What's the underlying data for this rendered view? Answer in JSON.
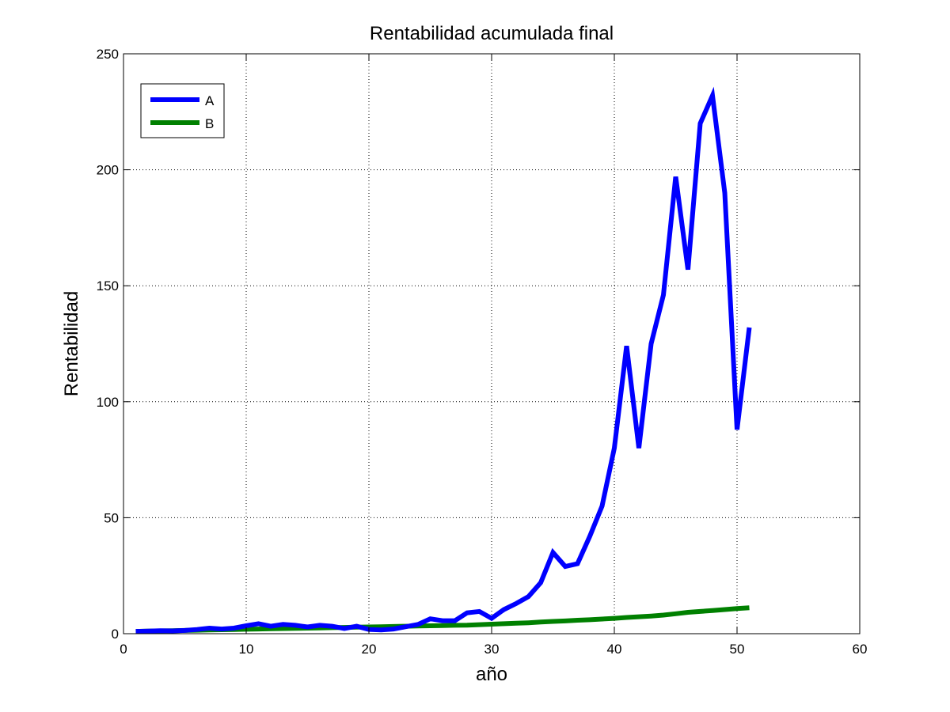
{
  "chart_data": {
    "type": "line",
    "title": "Rentabilidad acumulada final",
    "xlabel": "año",
    "ylabel": "Rentabilidad",
    "xlim": [
      0,
      60
    ],
    "ylim": [
      0,
      250
    ],
    "xticks": [
      0,
      10,
      20,
      30,
      40,
      50,
      60
    ],
    "yticks": [
      0,
      50,
      100,
      150,
      200,
      250
    ],
    "xtick_labels": [
      "0",
      "10",
      "20",
      "30",
      "40",
      "50",
      "60"
    ],
    "ytick_labels": [
      "0",
      "50",
      "100",
      "150",
      "200",
      "250"
    ],
    "grid": true,
    "legend_position": "top-left",
    "x": [
      1,
      2,
      3,
      4,
      5,
      6,
      7,
      8,
      9,
      10,
      11,
      12,
      13,
      14,
      15,
      16,
      17,
      18,
      19,
      20,
      21,
      22,
      23,
      24,
      25,
      26,
      27,
      28,
      29,
      30,
      31,
      32,
      33,
      34,
      35,
      36,
      37,
      38,
      39,
      40,
      41,
      42,
      43,
      44,
      45,
      46,
      47,
      48,
      49,
      50,
      51
    ],
    "series": [
      {
        "name": "A",
        "color": "#0000ff",
        "values": [
          1.0,
          1.1,
          1.3,
          1.2,
          1.4,
          1.8,
          2.4,
          2.0,
          2.4,
          3.4,
          4.3,
          3.2,
          4.0,
          3.6,
          2.9,
          3.6,
          3.2,
          2.2,
          3.2,
          1.8,
          1.6,
          2.0,
          3.0,
          4.0,
          6.4,
          5.6,
          5.6,
          9.0,
          9.6,
          6.6,
          10.4,
          13.0,
          16.0,
          22.0,
          35.0,
          29.0,
          30.2,
          42.0,
          55.0,
          80.0,
          124.0,
          80.0,
          125.0,
          146.0,
          197.0,
          157.0,
          220.0,
          232.0,
          190.0,
          88.0,
          132.0
        ]
      },
      {
        "name": "B",
        "color": "#008000",
        "values": [
          1.0,
          1.1,
          1.2,
          1.3,
          1.4,
          1.5,
          1.6,
          1.7,
          1.8,
          1.9,
          2.0,
          2.1,
          2.2,
          2.3,
          2.4,
          2.5,
          2.6,
          2.7,
          2.8,
          2.9,
          3.0,
          3.1,
          3.2,
          3.3,
          3.4,
          3.5,
          3.6,
          3.7,
          3.9,
          4.1,
          4.3,
          4.5,
          4.7,
          5.0,
          5.3,
          5.5,
          5.8,
          6.0,
          6.3,
          6.6,
          7.0,
          7.3,
          7.6,
          8.0,
          8.6,
          9.2,
          9.6,
          10.0,
          10.4,
          10.8,
          11.2
        ]
      }
    ]
  }
}
